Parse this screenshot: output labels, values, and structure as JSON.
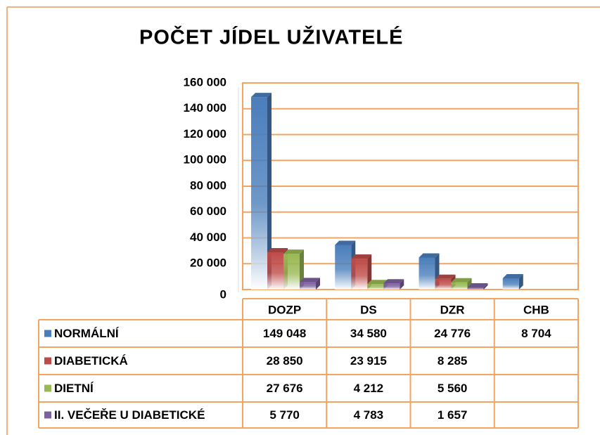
{
  "chart_data": {
    "type": "bar",
    "title": "POČET JÍDEL UŽIVATELÉ",
    "categories": [
      "DOZP",
      "DS",
      "DZR",
      "CHB"
    ],
    "series": [
      {
        "name": "NORMÁLNÍ",
        "color": "#4a7ebb",
        "values": [
          149048,
          34580,
          24776,
          8704
        ],
        "value_labels": [
          "149 048",
          "34 580",
          "24 776",
          "8 704"
        ]
      },
      {
        "name": "DIABETICKÁ",
        "color": "#be4b48",
        "values": [
          28850,
          23915,
          8285,
          null
        ],
        "value_labels": [
          "28 850",
          "23 915",
          "8 285",
          null
        ]
      },
      {
        "name": "DIETNÍ",
        "color": "#98b954",
        "values": [
          27676,
          4212,
          5560,
          null
        ],
        "value_labels": [
          "27 676",
          "4 212",
          "5 560",
          null
        ]
      },
      {
        "name": "II. VEČEŘE U DIABETICKÉ",
        "color": "#7d60a0",
        "values": [
          5770,
          4783,
          1657,
          null
        ],
        "value_labels": [
          "5 770",
          "4 783",
          "1 657",
          null
        ]
      }
    ],
    "ylim": [
      0,
      160000
    ],
    "yticks": [
      0,
      {
        "value": 20000,
        "label": "20 000"
      },
      {
        "value": 40000,
        "label": "40 000"
      },
      {
        "value": 60000,
        "label": "60 000"
      },
      {
        "value": 80000,
        "label": "80 000"
      },
      {
        "value": 100000,
        "label": "100 000"
      },
      {
        "value": 120000,
        "label": "120 000"
      },
      {
        "value": 140000,
        "label": "140 000"
      },
      {
        "value": 160000,
        "label": "160 000"
      }
    ],
    "grid": true
  }
}
